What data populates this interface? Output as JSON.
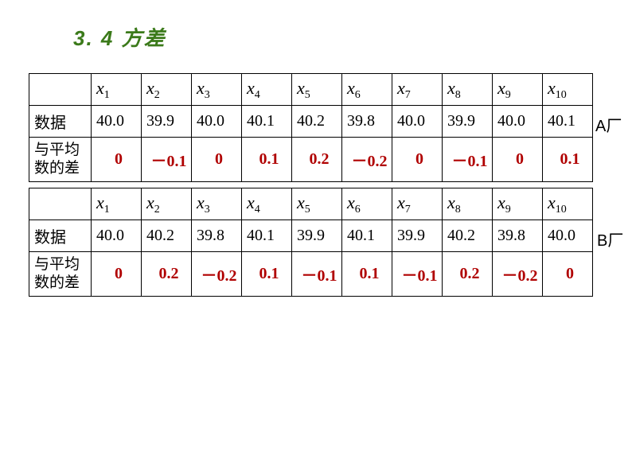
{
  "title": "3. 4 方差",
  "title_color": "#3b7a1a",
  "title_fontsize": 26,
  "diff_color": "#b00000",
  "border_color": "#000000",
  "row_headers": {
    "data": "数据",
    "diff_line1": "与平均",
    "diff_line2": "数的差"
  },
  "factory_labels": {
    "a": "A厂",
    "b": "B厂"
  },
  "variables": [
    "x",
    "x",
    "x",
    "x",
    "x",
    "x",
    "x",
    "x",
    "x",
    "x"
  ],
  "subscripts": [
    "1",
    "2",
    "3",
    "4",
    "5",
    "6",
    "7",
    "8",
    "9",
    "10"
  ],
  "tableA": {
    "data": [
      "40.0",
      "39.9",
      "40.0",
      "40.1",
      "40.2",
      "39.8",
      "40.0",
      "39.9",
      "40.0",
      "40.1"
    ],
    "diff": [
      "0",
      "－0.1",
      "0",
      "0.1",
      "0.2",
      "－0.2",
      "0",
      "－0.1",
      "0",
      "0.1"
    ]
  },
  "tableB": {
    "data": [
      "40.0",
      "40.2",
      "39.8",
      "40.1",
      "39.9",
      "40.1",
      "39.9",
      "40.2",
      "39.8",
      "40.0"
    ],
    "diff": [
      "0",
      "0.2",
      "－0.2",
      "0.1",
      "－0.1",
      "0.1",
      "－0.1",
      "0.2",
      "－0.2",
      "0"
    ]
  }
}
